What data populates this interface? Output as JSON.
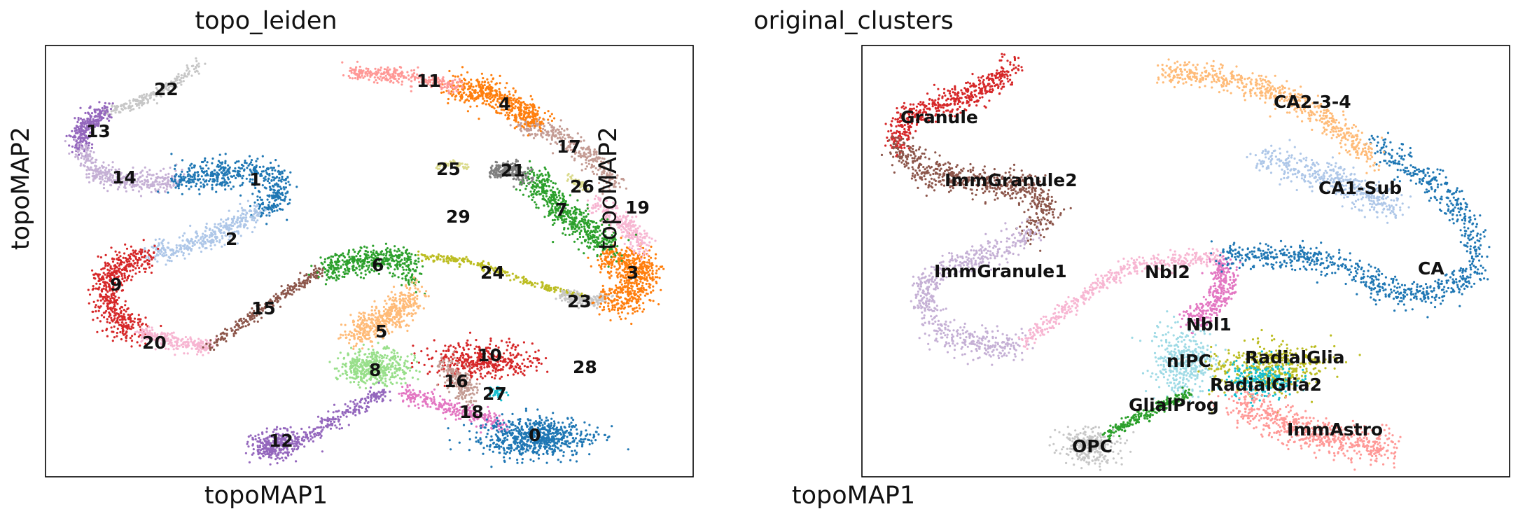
{
  "chart_data": [
    {
      "type": "scatter",
      "title": "topo_leiden",
      "xlabel": "topoMAP1",
      "ylabel": "topoMAP2",
      "grid": false,
      "legend": "labels on data",
      "clusters": [
        {
          "label": "0",
          "color": "#1f77b4"
        },
        {
          "label": "1",
          "color": "#1f77b4"
        },
        {
          "label": "2",
          "color": "#aec7e8"
        },
        {
          "label": "3",
          "color": "#ff7f0e"
        },
        {
          "label": "4",
          "color": "#ff7f0e"
        },
        {
          "label": "5",
          "color": "#ffbb78"
        },
        {
          "label": "6",
          "color": "#2ca02c"
        },
        {
          "label": "7",
          "color": "#2ca02c"
        },
        {
          "label": "8",
          "color": "#98df8a"
        },
        {
          "label": "9",
          "color": "#d62728"
        },
        {
          "label": "10",
          "color": "#d62728"
        },
        {
          "label": "11",
          "color": "#ff9896"
        },
        {
          "label": "12",
          "color": "#9467bd"
        },
        {
          "label": "13",
          "color": "#9467bd"
        },
        {
          "label": "14",
          "color": "#c5b0d5"
        },
        {
          "label": "15",
          "color": "#8c564b"
        },
        {
          "label": "16",
          "color": "#c49c94"
        },
        {
          "label": "17",
          "color": "#c49c94"
        },
        {
          "label": "18",
          "color": "#e377c2"
        },
        {
          "label": "19",
          "color": "#f7b6d2"
        },
        {
          "label": "20",
          "color": "#f7b6d2"
        },
        {
          "label": "21",
          "color": "#7f7f7f"
        },
        {
          "label": "22",
          "color": "#c7c7c7"
        },
        {
          "label": "23",
          "color": "#c7c7c7"
        },
        {
          "label": "24",
          "color": "#bcbd22"
        },
        {
          "label": "25",
          "color": "#dbdb8d"
        },
        {
          "label": "26",
          "color": "#dbdb8d"
        },
        {
          "label": "27",
          "color": "#17becf"
        },
        {
          "label": "28",
          "color": "#9edae5"
        },
        {
          "label": "29",
          "color": "#9edae5"
        }
      ]
    },
    {
      "type": "scatter",
      "title": "original_clusters",
      "xlabel": "topoMAP1",
      "ylabel": "topoMAP2",
      "grid": false,
      "legend": "labels on data",
      "clusters": [
        {
          "label": "Granule",
          "color": "#d62728"
        },
        {
          "label": "ImmGranule2",
          "color": "#8c564b"
        },
        {
          "label": "ImmGranule1",
          "color": "#c5b0d5"
        },
        {
          "label": "Nbl2",
          "color": "#f7b6d2"
        },
        {
          "label": "Nbl1",
          "color": "#e377c2"
        },
        {
          "label": "nIPC",
          "color": "#9edae5"
        },
        {
          "label": "RadialGlia",
          "color": "#bcbd22"
        },
        {
          "label": "RadialGlia2",
          "color": "#17becf"
        },
        {
          "label": "GlialProg",
          "color": "#2ca02c"
        },
        {
          "label": "OPC",
          "color": "#c7c7c7"
        },
        {
          "label": "ImmAstro",
          "color": "#ff9896"
        },
        {
          "label": "CA2-3-4",
          "color": "#ffbb78"
        },
        {
          "label": "CA1-Sub",
          "color": "#aec7e8"
        },
        {
          "label": "CA",
          "color": "#1f77b4"
        }
      ]
    }
  ]
}
